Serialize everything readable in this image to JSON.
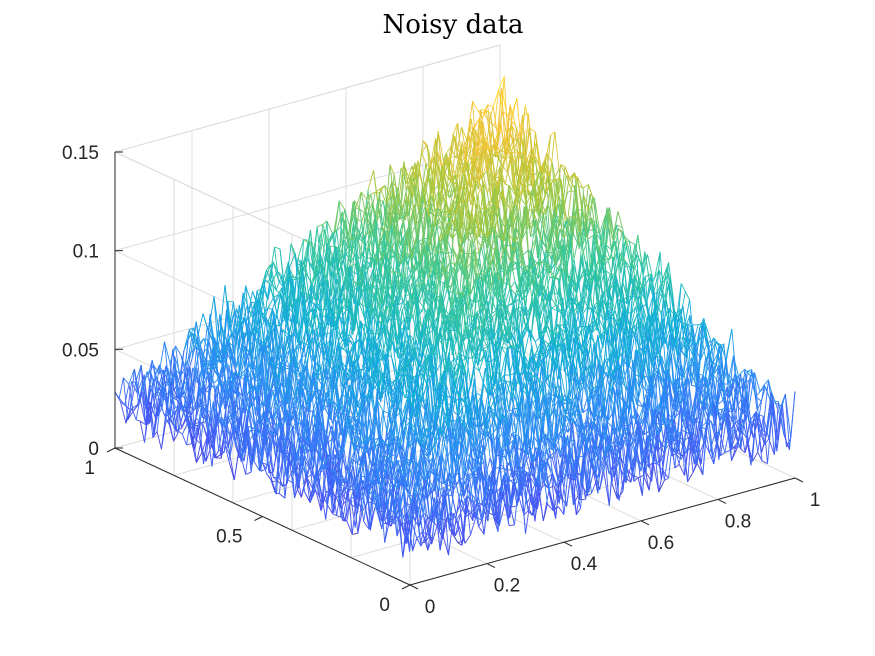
{
  "chart_data": {
    "type": "mesh",
    "title": "Noisy data",
    "xlabel": "",
    "ylabel": "",
    "zlabel": "",
    "grid": true,
    "colormap": "parula",
    "xlim": [
      0,
      1
    ],
    "ylim": [
      0,
      1
    ],
    "zlim": [
      0,
      0.15
    ],
    "x_ticks": [
      "0",
      "0.2",
      "0.4",
      "0.6",
      "0.8",
      "1"
    ],
    "y_ticks": [
      "0",
      "0.5",
      "1"
    ],
    "z_ticks": [
      "0",
      "0.05",
      "0.1",
      "0.15"
    ],
    "surface": {
      "description_function": "z = 0.1*(1-x)*y*... peaked pyramid plus uniform noise",
      "peak_z": 0.13,
      "peak_x": 1.0,
      "peak_y": 1.0,
      "baseline_z": 0.02,
      "noise_amplitude": 0.035
    }
  }
}
